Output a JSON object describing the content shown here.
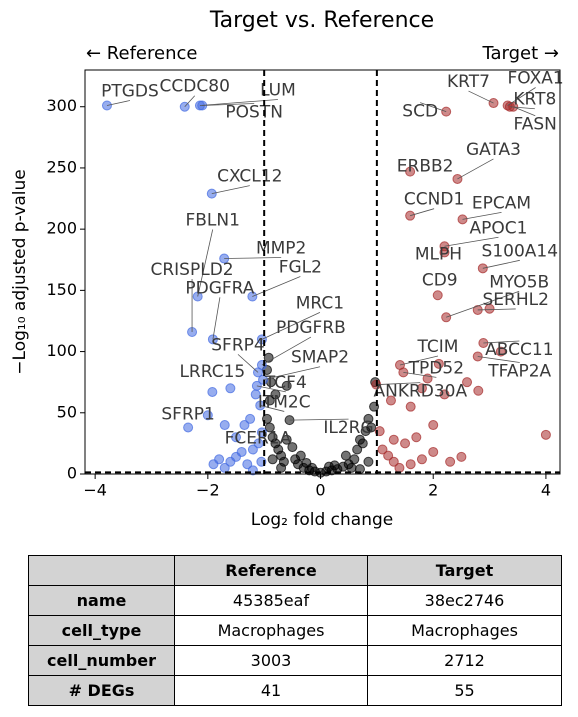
{
  "chart_data": {
    "type": "scatter",
    "title": "Target vs. Reference",
    "left_annotation": "← Reference",
    "right_annotation": "Target →",
    "xlabel": "Log₂ fold change",
    "ylabel": "−Log₁₀ adjusted p-value",
    "xlim": [
      -4.18,
      4.25
    ],
    "ylim": [
      0,
      330
    ],
    "xticks": [
      {
        "value": -4,
        "label": "−4"
      },
      {
        "value": -2,
        "label": "−2"
      },
      0,
      2,
      4
    ],
    "yticks": [
      0,
      50,
      100,
      150,
      200,
      250,
      300
    ],
    "vlines": [
      -1,
      1
    ],
    "hline": 1.3,
    "series": [
      {
        "color": "#000000",
        "x": [
          -0.55,
          -0.95,
          -0.9,
          -0.85,
          -0.8,
          -0.75,
          -0.7,
          -0.6,
          -0.5,
          -0.45,
          -0.4,
          -0.3,
          -0.2,
          -0.1,
          0,
          0.1,
          0.2,
          0.3,
          0.4,
          0.5,
          0.6,
          0.65,
          0.7,
          0.75,
          0.8,
          0.85,
          0.9,
          0.95,
          0.97,
          -0.9,
          -0.8,
          -0.65,
          -0.35,
          0.45,
          0.55,
          -0.25,
          0.25,
          -0.15,
          0.15,
          -0.7,
          0.7,
          -0.85,
          0.85,
          -0.95,
          -0.92,
          -0.6,
          -0.88
        ],
        "values": [
          44,
          45,
          38,
          30,
          25,
          20,
          15,
          28,
          22,
          12,
          8,
          5,
          3,
          2,
          1,
          2,
          3,
          4,
          6,
          8,
          12,
          20,
          28,
          25,
          35,
          45,
          38,
          55,
          75,
          60,
          65,
          10,
          15,
          15,
          5,
          9,
          7,
          5,
          6,
          5,
          4,
          12,
          10,
          85,
          95,
          72,
          75
        ],
        "labels": [
          "IL2RG",
          null,
          null,
          null,
          null,
          null,
          null,
          null,
          null,
          null,
          null,
          null,
          null,
          null,
          null,
          null,
          null,
          null,
          null,
          null,
          null,
          null,
          null,
          null,
          null,
          null,
          null,
          null,
          null,
          null,
          null,
          null,
          null,
          null,
          null,
          null,
          null,
          null,
          null,
          null,
          null,
          null,
          null,
          null,
          null,
          null,
          null
        ]
      },
      {
        "color": "#4169e1",
        "x": [
          -3.79,
          -2.41,
          -2.14,
          -2.1,
          -1.93,
          -2.18,
          -1.71,
          -1.21,
          -2.28,
          -1.91,
          -1.04,
          -1.04,
          -1.11,
          -1.02,
          -1.92,
          -1.13,
          -1.07,
          -2.35,
          -1.04,
          -1.8,
          -1.6,
          -1.5,
          -1.4,
          -1.3,
          -1.2,
          -1.7,
          -1.9,
          -1.1,
          -1.35,
          -1.5,
          -1.25,
          -2.0,
          -1.7,
          -1.6,
          -1.15,
          -1.05,
          -1.2
        ],
        "values": [
          301,
          300,
          301,
          301,
          229,
          145,
          176,
          145,
          116,
          110,
          110,
          89,
          83,
          77,
          67,
          72,
          56,
          38,
          34,
          12,
          10,
          14,
          18,
          8,
          20,
          5,
          8,
          25,
          40,
          30,
          45,
          48,
          40,
          70,
          65,
          10,
          3
        ],
        "labels": [
          "PTGDS",
          "CCDC80",
          "LUM",
          "POSTN",
          "CXCL12",
          "FBLN1",
          "MMP2",
          "FGL2",
          "CRISPLD2",
          "PDGFRA",
          "MRC1",
          "PDGFRB",
          "SFRP4",
          "SMAP2",
          "LRRC15",
          "TCF4",
          "ITM2C",
          "SFRP1",
          "FCER1A",
          null,
          null,
          null,
          null,
          null,
          null,
          null,
          null,
          null,
          null,
          null,
          null,
          null,
          null,
          null,
          null,
          null,
          null
        ]
      },
      {
        "color": "#a52a2a",
        "x": [
          3.07,
          3.32,
          3.36,
          3.42,
          2.23,
          2.43,
          1.59,
          1.59,
          2.52,
          2.2,
          2.2,
          2.88,
          2.08,
          2.23,
          2.79,
          1.41,
          2.89,
          1.47,
          2.79,
          0.99,
          1.1,
          1.2,
          1.3,
          1.5,
          1.6,
          1.8,
          2.0,
          2.3,
          2.5,
          1.4,
          1.05,
          1.25,
          1.6,
          1.8,
          1.9,
          2.2,
          2.6,
          2.8,
          3.2,
          3.0,
          1.7,
          4.0,
          1.3,
          2.1,
          2.0
        ],
        "values": [
          303,
          301,
          300,
          300,
          296,
          241,
          247,
          211,
          208,
          186,
          181,
          168,
          146,
          128,
          134,
          89,
          107,
          83,
          96,
          73,
          20,
          15,
          10,
          25,
          8,
          12,
          18,
          10,
          14,
          5,
          35,
          60,
          55,
          70,
          78,
          65,
          75,
          68,
          100,
          135,
          30,
          32,
          28,
          90,
          40
        ],
        "labels": [
          "KRT7",
          "FOXA1",
          "KRT8",
          "FASN",
          "SCD",
          "GATA3",
          "ERBB2",
          "CCND1",
          "EPCAM",
          "APOC1",
          "MLPH",
          "S100A14",
          "CD9",
          "MYO5B",
          "SERHL2",
          "TCIM",
          "ABCC11",
          "TPD52",
          "TFAP2A",
          "ANKRD30A",
          null,
          null,
          null,
          null,
          null,
          null,
          null,
          null,
          null,
          null,
          null,
          null,
          null,
          null,
          null,
          null,
          null,
          null,
          null,
          null,
          null,
          null,
          null,
          null,
          null
        ]
      }
    ]
  },
  "table": {
    "header": [
      "Reference",
      "Target"
    ],
    "rows": [
      [
        "name",
        "45385eaf",
        "38ec2746"
      ],
      [
        "cell_type",
        "Macrophages",
        "Macrophages"
      ],
      [
        "cell_number",
        3003,
        2712
      ],
      [
        "# DEGs",
        41,
        55
      ]
    ]
  }
}
